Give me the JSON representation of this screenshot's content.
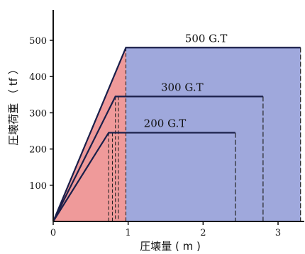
{
  "chart_data": {
    "type": "line",
    "title": "",
    "xlabel": "圧壊量 ( m )",
    "ylabel": "圧壊荷重 （ tf ）",
    "xlim": [
      0,
      3.35
    ],
    "ylim": [
      0,
      545
    ],
    "x_ticks": [
      0,
      1,
      2,
      3
    ],
    "y_ticks": [
      100,
      200,
      300,
      400,
      500
    ],
    "x_tick_labels": [
      "0",
      "1",
      "2",
      "3"
    ],
    "y_tick_labels": [
      "100",
      "200",
      "300",
      "400",
      "500"
    ],
    "grid": false,
    "series": [
      {
        "name": "500 G.T",
        "points": [
          [
            0,
            0
          ],
          [
            0.97,
            480
          ],
          [
            3.3,
            480
          ]
        ],
        "drop_x": 3.3,
        "guide_x": [
          0.97
        ]
      },
      {
        "name": "300 G.T",
        "points": [
          [
            0,
            0
          ],
          [
            0.83,
            345
          ],
          [
            2.8,
            345
          ]
        ],
        "drop_x": 2.8,
        "guide_x": [
          0.83,
          0.87
        ]
      },
      {
        "name": "200 G.T",
        "points": [
          [
            0,
            0
          ],
          [
            0.74,
            245
          ],
          [
            2.43,
            245
          ]
        ],
        "drop_x": 2.43,
        "guide_x": [
          0.74,
          0.79
        ]
      }
    ],
    "fills": {
      "elastic_color": "#ef9a9a",
      "plastic_color": "#9fa8dc"
    }
  }
}
